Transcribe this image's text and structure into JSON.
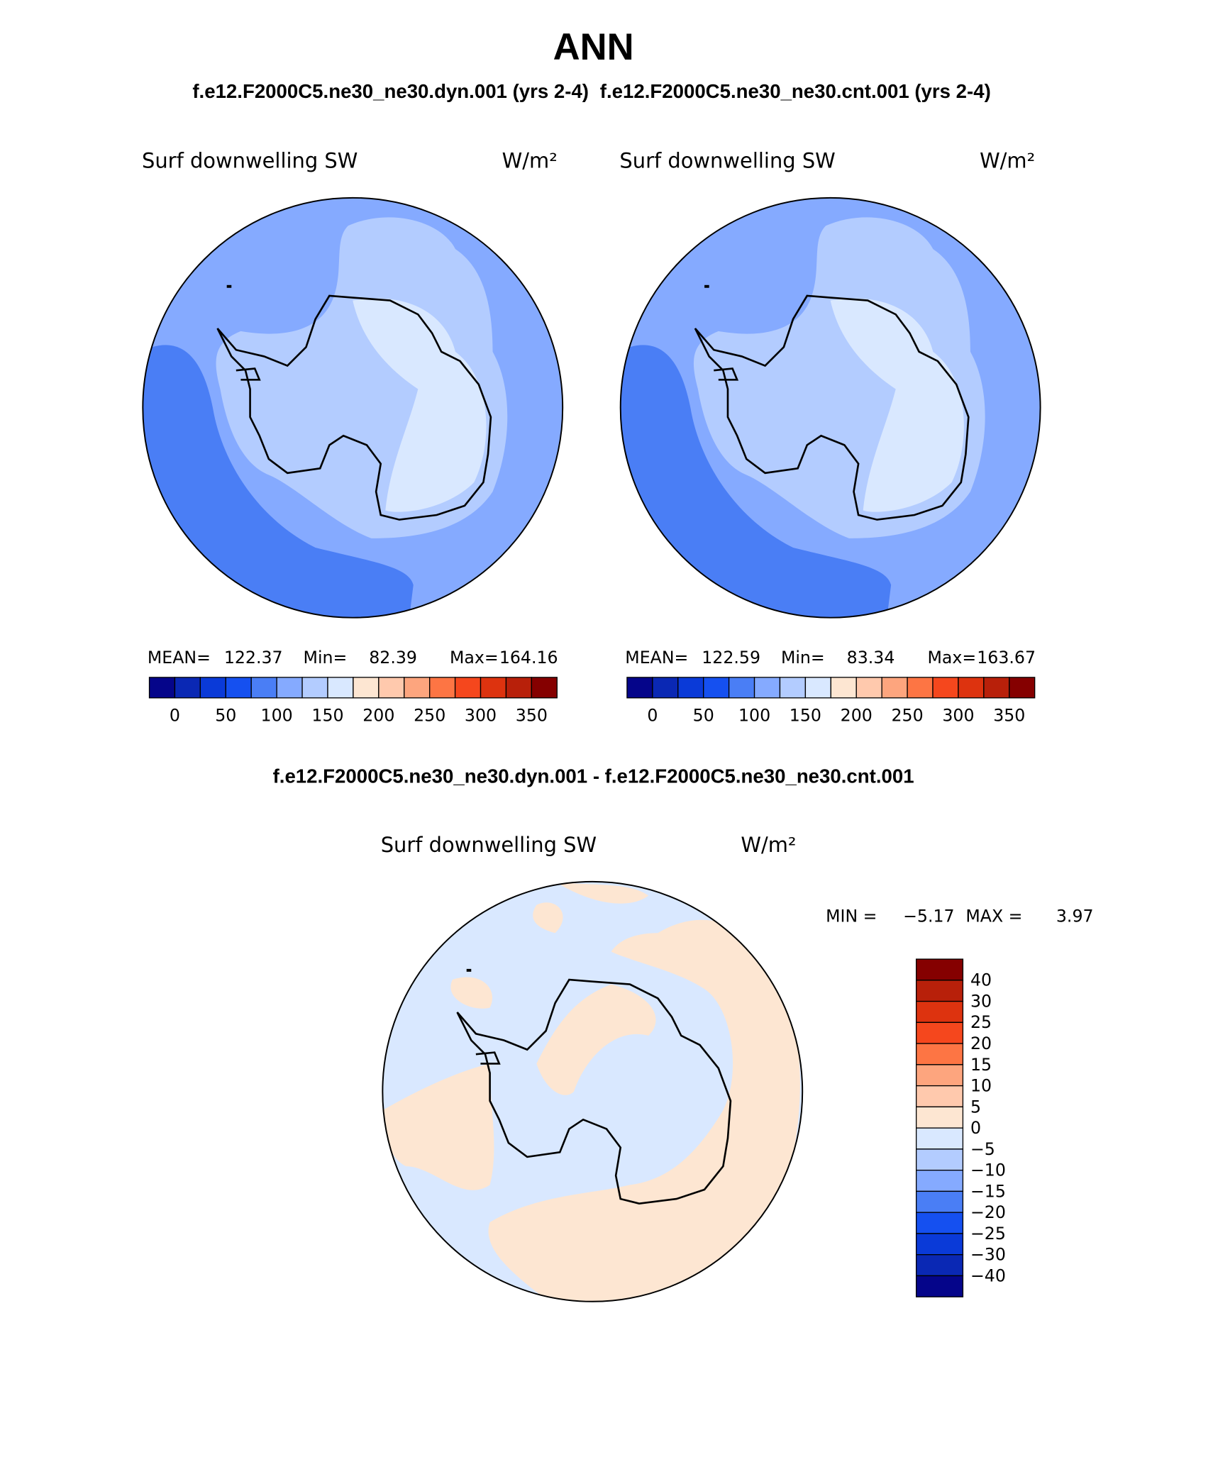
{
  "title": "ANN",
  "panels": [
    {
      "case": "f.e12.F2000C5.ne30_ne30.dyn.001 (yrs 2-4)",
      "field": "Surf downwelling SW",
      "units": "W/m²",
      "stats": [
        {
          "label": "MEAN=",
          "value": "122.37"
        },
        {
          "label": "Min=",
          "value": "82.39"
        },
        {
          "label": "Max=",
          "value": "164.16"
        }
      ]
    },
    {
      "case": "f.e12.F2000C5.ne30_ne30.cnt.001 (yrs 2-4)",
      "field": "Surf downwelling SW",
      "units": "W/m²",
      "stats": [
        {
          "label": "MEAN=",
          "value": "122.59"
        },
        {
          "label": "Min=",
          "value": "83.34"
        },
        {
          "label": "Max=",
          "value": "163.67"
        }
      ]
    }
  ],
  "colorbar": {
    "colors": [
      "#05058a",
      "#0a28b4",
      "#0a3ad8",
      "#1550f0",
      "#4a7ef5",
      "#85aaff",
      "#b3ccff",
      "#d9e8ff",
      "#fde6d2",
      "#ffc9ad",
      "#fda57e",
      "#fd7544",
      "#f5471d",
      "#dd330f",
      "#b8200a",
      "#850000"
    ],
    "labels": [
      "0",
      "50",
      "100",
      "150",
      "200",
      "250",
      "300",
      "350"
    ]
  },
  "difference": {
    "title": "f.e12.F2000C5.ne30_ne30.dyn.001 - f.e12.F2000C5.ne30_ne30.cnt.001",
    "field": "Surf downwelling SW",
    "units": "W/m²",
    "stats": [
      {
        "label": "MIN =",
        "value": "−5.17"
      },
      {
        "label": "MAX =",
        "value": "3.97"
      }
    ],
    "colorbar": {
      "colors": [
        "#850000",
        "#b8200a",
        "#dd330f",
        "#f5471d",
        "#fd7544",
        "#fda57e",
        "#ffc9ad",
        "#fde6d2",
        "#d9e8ff",
        "#b3ccff",
        "#85aaff",
        "#4a7ef5",
        "#1550f0",
        "#0a3ad8",
        "#0a28b4",
        "#05058a"
      ],
      "labels": [
        "40",
        "30",
        "25",
        "20",
        "15",
        "10",
        "5",
        "0",
        "−5",
        "−10",
        "−15",
        "−20",
        "−25",
        "−30",
        "−40"
      ]
    }
  }
}
